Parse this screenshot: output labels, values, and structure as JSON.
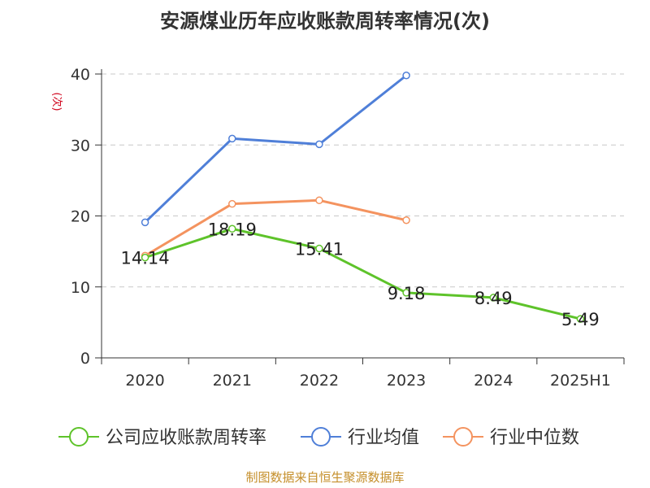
{
  "chart_data": {
    "type": "line",
    "title": "安源煤业历年应收账款周转率情况(次)",
    "ylabel": "(次)",
    "xlabel": "",
    "categories": [
      "2020",
      "2021",
      "2022",
      "2023",
      "2024",
      "2025H1"
    ],
    "ylim": [
      0,
      40
    ],
    "yticks": [
      0,
      10,
      20,
      30,
      40
    ],
    "grid": true,
    "legend_position": "bottom",
    "series": [
      {
        "name": "公司应收账款周转率",
        "color": "#5ec32a",
        "values": [
          14.14,
          18.19,
          15.41,
          9.18,
          8.49,
          5.49
        ],
        "labels": [
          "14.14",
          "18.19",
          "15.41",
          "9.18",
          "8.49",
          "5.49"
        ]
      },
      {
        "name": "行业均值",
        "color": "#4f7fd8",
        "values": [
          19.1,
          30.9,
          30.1,
          39.8,
          null,
          null
        ]
      },
      {
        "name": "行业中位数",
        "color": "#f4935f",
        "values": [
          14.4,
          21.7,
          22.2,
          19.4,
          null,
          null
        ]
      }
    ]
  },
  "source": "制图数据来自恒生聚源数据库"
}
